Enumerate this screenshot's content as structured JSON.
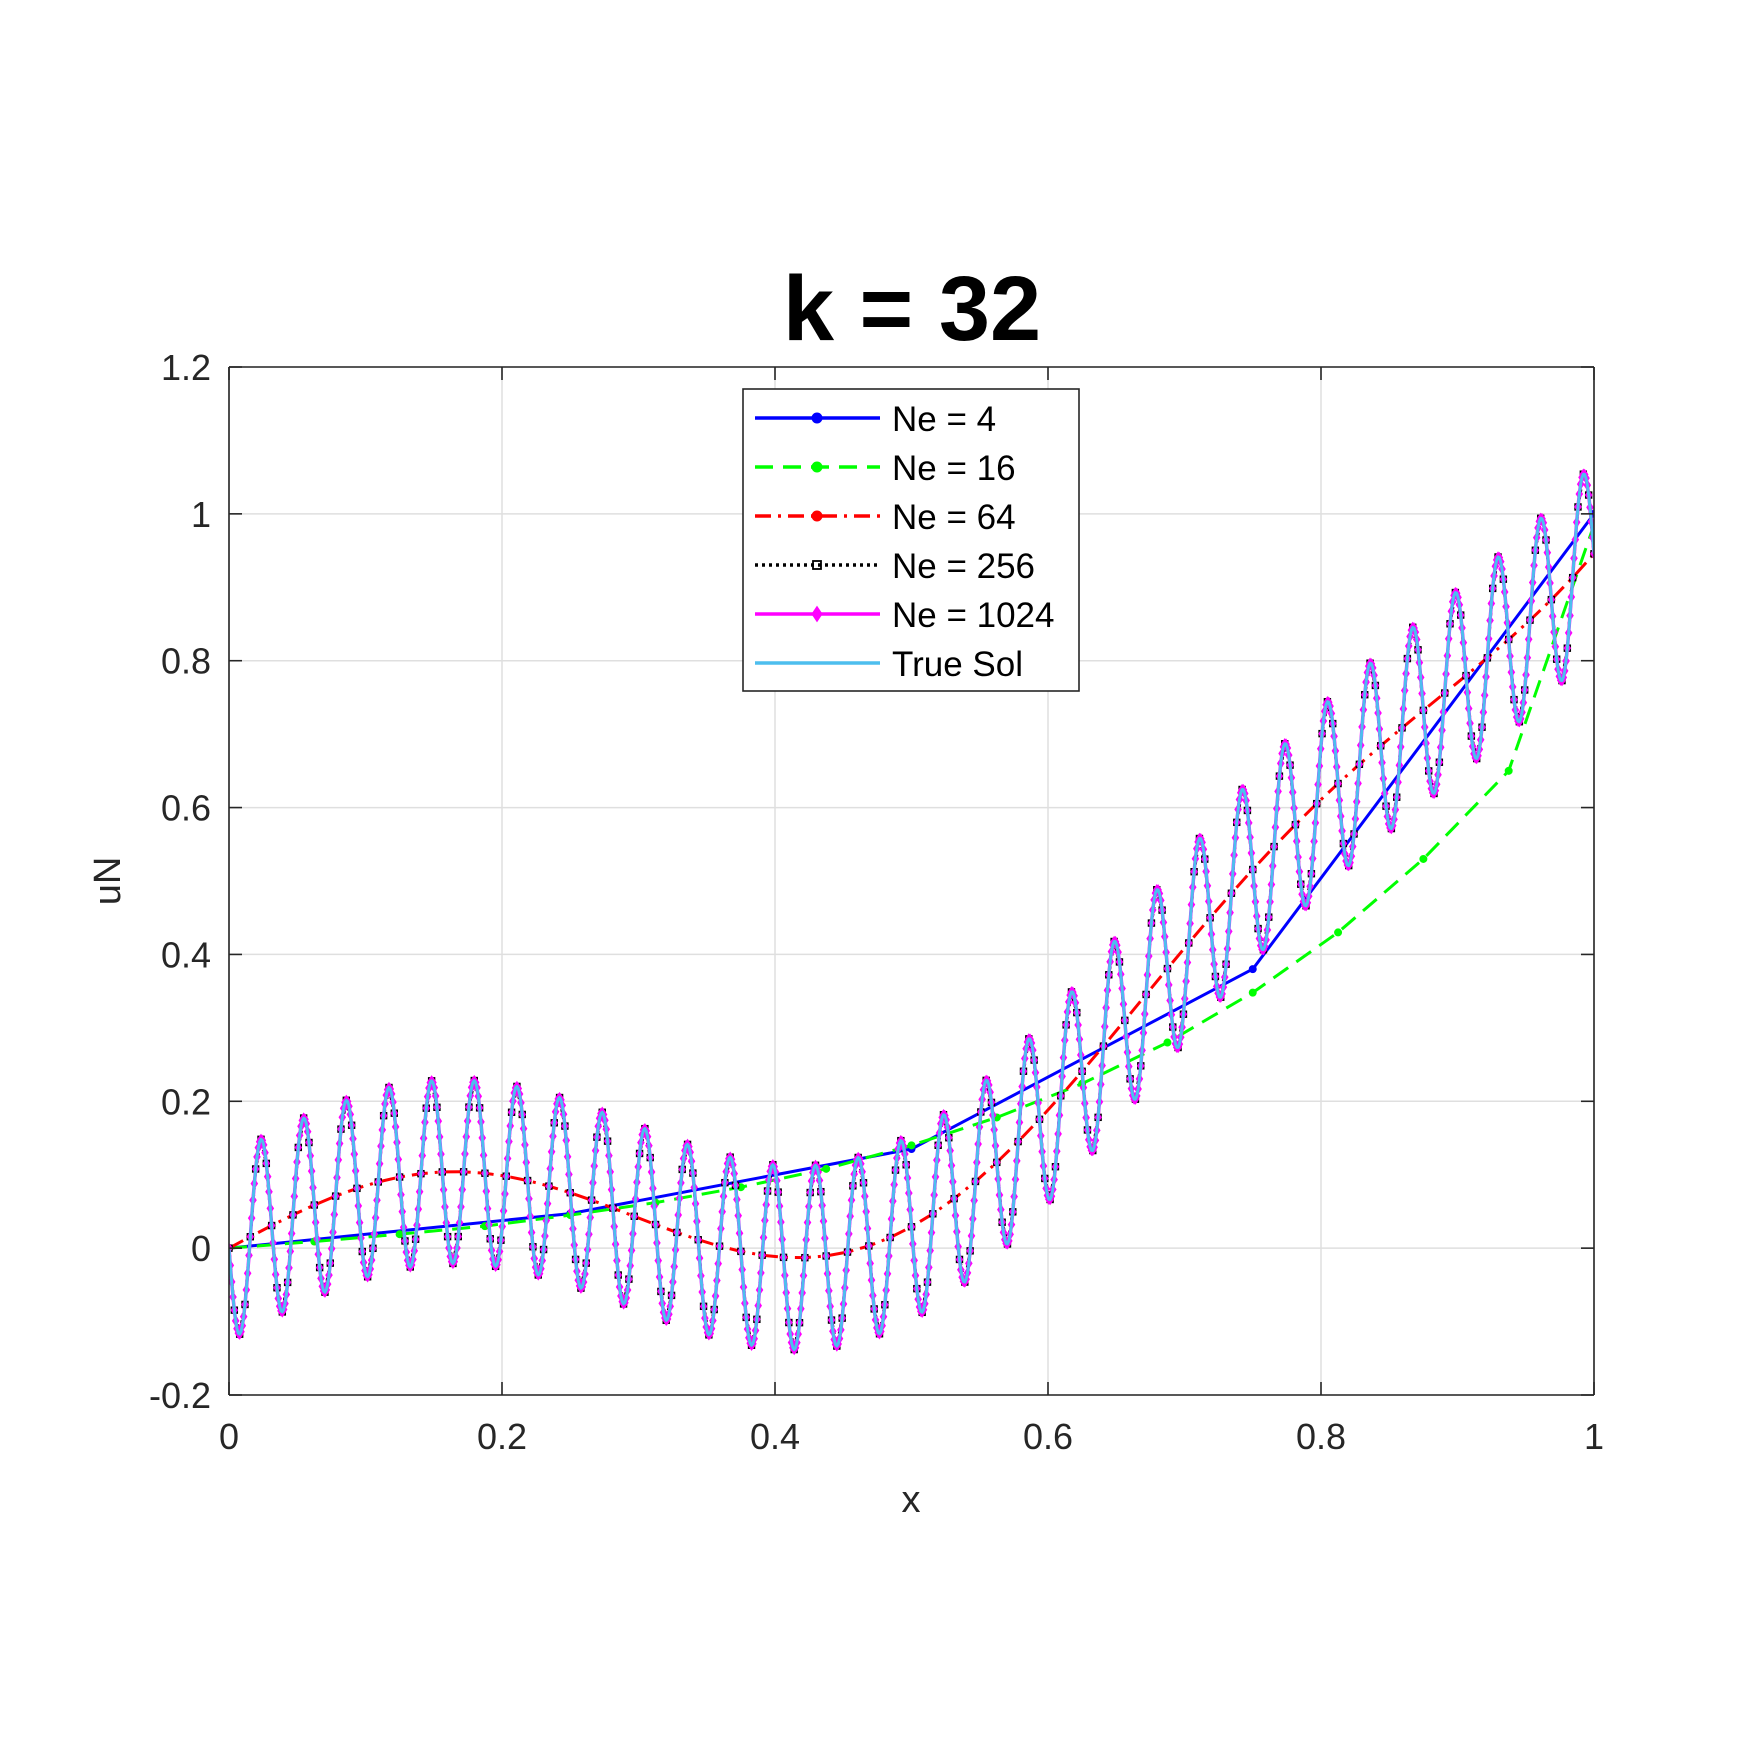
{
  "chart_data": {
    "type": "line",
    "title": "k = 32",
    "xlabel": "x",
    "ylabel": "uN",
    "xlim": [
      0,
      1
    ],
    "ylim": [
      -0.2,
      1.2
    ],
    "xticks": [
      0,
      0.2,
      0.4,
      0.6,
      0.8,
      1
    ],
    "yticks": [
      -0.2,
      0,
      0.2,
      0.4,
      0.6,
      0.8,
      1,
      1.2
    ],
    "xtick_labels": [
      "0",
      "0.2",
      "0.4",
      "0.6",
      "0.8",
      "1"
    ],
    "ytick_labels": [
      "-0.2",
      "0",
      "0.2",
      "0.4",
      "0.6",
      "0.8",
      "1",
      "1.2"
    ],
    "grid": true,
    "legend_position": "top-center",
    "series": [
      {
        "name": "Ne = 4",
        "color": "#0000ff",
        "line_style": "solid",
        "marker": "dot",
        "x": [
          0,
          0.25,
          0.5,
          0.75,
          1
        ],
        "y": [
          0,
          0.047,
          0.135,
          0.38,
          1.0
        ]
      },
      {
        "name": "Ne = 16",
        "color": "#00ff00",
        "line_style": "dashed",
        "marker": "dot",
        "x": [
          0,
          0.0625,
          0.125,
          0.1875,
          0.25,
          0.3125,
          0.375,
          0.4375,
          0.5,
          0.5625,
          0.625,
          0.6875,
          0.75,
          0.8125,
          0.875,
          0.9375,
          1
        ],
        "y": [
          0,
          0.009,
          0.019,
          0.03,
          0.045,
          0.062,
          0.083,
          0.108,
          0.14,
          0.178,
          0.224,
          0.28,
          0.348,
          0.43,
          0.53,
          0.65,
          0.985
        ]
      },
      {
        "name": "Ne = 64",
        "color": "#ff0000",
        "line_style": "dashdot",
        "marker": "dot",
        "formula": "x^3 + 0.1 sin(10x)",
        "n_points": 65
      },
      {
        "name": "Ne = 256",
        "color": "#000000",
        "line_style": "dotted",
        "marker": "square",
        "formula": "x^3 + 0.1 sin(10x) - 0.125 sin(64 pi x)",
        "n_points": 257
      },
      {
        "name": "Ne = 1024",
        "color": "#ff00ff",
        "line_style": "solid",
        "marker": "diamond",
        "formula": "x^3 + 0.1 sin(10x) - 0.125 sin(64 pi x)",
        "n_points": 1025
      },
      {
        "name": "True Sol",
        "color": "#4dbeee",
        "line_style": "solid",
        "marker": "none",
        "formula": "x^3 + 0.1 sin(10x) - 0.125 sin(64 pi x)",
        "n_points": 1025
      }
    ]
  }
}
